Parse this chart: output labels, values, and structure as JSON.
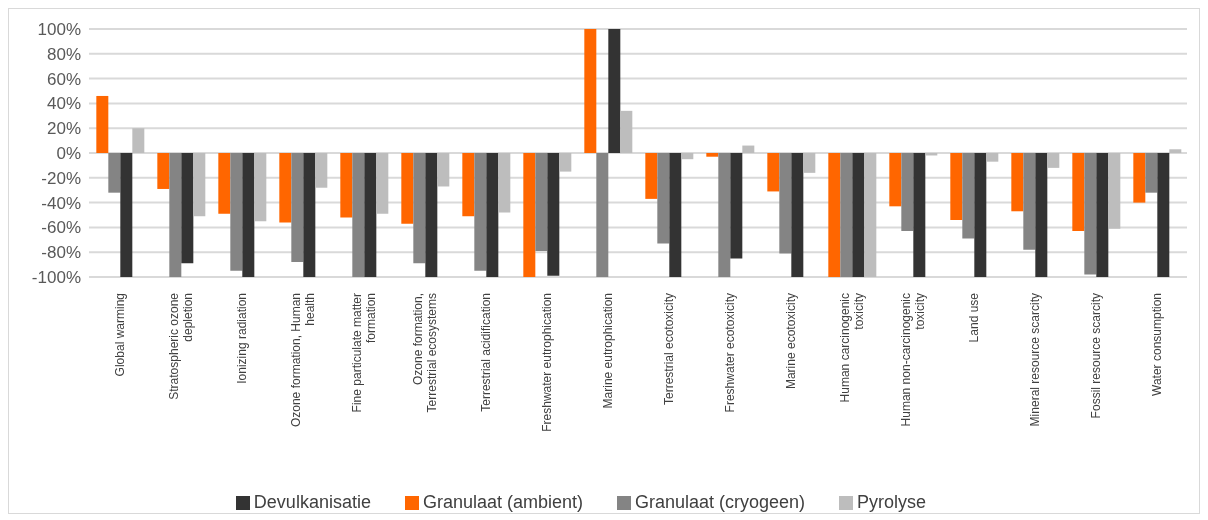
{
  "chart_data": {
    "type": "bar",
    "categories": [
      "Global warming",
      "Stratospheric ozone depletion",
      "Ionizing radiation",
      "Ozone formation, Human health",
      "Fine particulate matter formation",
      "Ozone formation, Terrestrial ecosystems",
      "Terrestrial acidification",
      "Freshwater eutrophication",
      "Marine eutrophication",
      "Terrestrial ecotoxicity",
      "Freshwater ecotoxicity",
      "Marine ecotoxicity",
      "Human carcinogenic toxicity",
      "Human non-carcinogenic toxicity",
      "Land use",
      "Mineral resource scarcity",
      "Fossil resource scarcity",
      "Water consumption"
    ],
    "series": [
      {
        "name": "Granulaat (ambient)",
        "color": "#ff6600",
        "values": [
          46,
          -29,
          -49,
          -56,
          -52,
          -57,
          -51,
          -100,
          100,
          -37,
          -3,
          -31,
          -100,
          -43,
          -54,
          -47,
          -63,
          -40
        ]
      },
      {
        "name": "Granulaat (cryogeen)",
        "color": "#848484",
        "values": [
          -32,
          -100,
          -95,
          -88,
          -100,
          -89,
          -95,
          -79,
          -100,
          -73,
          -100,
          -81,
          -100,
          -63,
          -69,
          -78,
          -98,
          -32
        ]
      },
      {
        "name": "Devulkanisatie",
        "color": "#333333",
        "values": [
          -100,
          -89,
          -100,
          -100,
          -100,
          -100,
          -100,
          -99,
          100,
          -100,
          -85,
          -100,
          -100,
          -100,
          -100,
          -100,
          -100,
          -100
        ]
      },
      {
        "name": "Pyrolyse",
        "color": "#bdbdbd",
        "values": [
          20,
          -51,
          -55,
          -28,
          -49,
          -27,
          -48,
          -15,
          34,
          -5,
          6,
          -16,
          -100,
          -2,
          -7,
          -12,
          -61,
          3
        ]
      }
    ],
    "ylim": [
      -100,
      100
    ],
    "yticks": [
      {
        "value": -100,
        "label": "-100%"
      },
      {
        "value": -80,
        "label": "-80%"
      },
      {
        "value": -60,
        "label": "-60%"
      },
      {
        "value": -40,
        "label": "-40%"
      },
      {
        "value": -20,
        "label": "-20%"
      },
      {
        "value": 0,
        "label": "0%"
      },
      {
        "value": 20,
        "label": "20%"
      },
      {
        "value": 40,
        "label": "40%"
      },
      {
        "value": 60,
        "label": "60%"
      },
      {
        "value": 80,
        "label": "80%"
      },
      {
        "value": 100,
        "label": "100%"
      }
    ],
    "grid": "y",
    "legend": "bottom"
  }
}
